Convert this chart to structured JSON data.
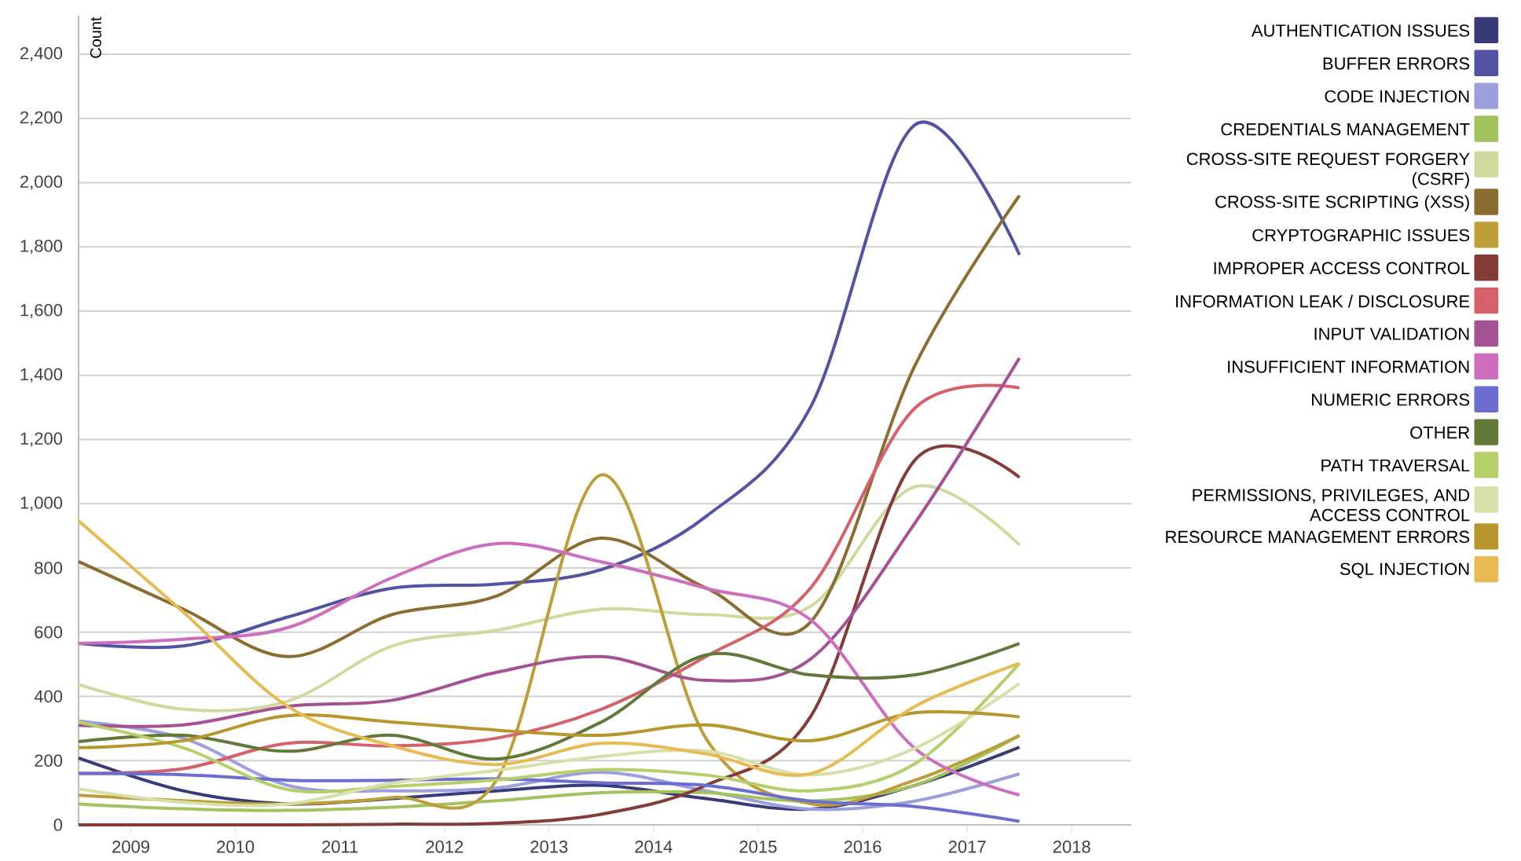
{
  "chart_data": {
    "type": "line",
    "ylabel": "Count",
    "x": [
      2008.5,
      2009.5,
      2010.5,
      2011.5,
      2012.5,
      2013.5,
      2014.5,
      2015.5,
      2016.5,
      2017.5
    ],
    "xlim": [
      2008.5,
      2018.57
    ],
    "xticks": [
      2009,
      2010,
      2011,
      2012,
      2013,
      2014,
      2015,
      2016,
      2017,
      2018
    ],
    "ylim": [
      0,
      2520
    ],
    "yticks": [
      0,
      200,
      400,
      600,
      800,
      {
        "value": 1000,
        "label": "1,000"
      },
      {
        "value": 1200,
        "label": "1,200"
      },
      {
        "value": 1400,
        "label": "1,400"
      },
      {
        "value": 1600,
        "label": "1,600"
      },
      {
        "value": 1800,
        "label": "1,800"
      },
      {
        "value": 2000,
        "label": "2,000"
      },
      {
        "value": 2200,
        "label": "2,200"
      },
      {
        "value": 2400,
        "label": "2,400"
      }
    ],
    "grid": "y",
    "legend": "right",
    "series": [
      {
        "name": "AUTHENTICATION ISSUES",
        "color": "#393b79",
        "values": [
          208,
          106,
          65,
          82,
          106,
          123,
          82,
          49,
          123,
          242
        ]
      },
      {
        "name": "BUFFER ERRORS",
        "color": "#5254a3",
        "values": [
          565,
          557,
          647,
          737,
          750,
          795,
          960,
          1300,
          2180,
          1775
        ]
      },
      {
        "name": "CODE INJECTION",
        "color": "#9c9ede",
        "values": [
          323,
          270,
          123,
          106,
          115,
          164,
          106,
          49,
          74,
          159
        ]
      },
      {
        "name": "CREDENTIALS MANAGEMENT",
        "color": "#a3c35e",
        "values": [
          65,
          50,
          45,
          55,
          75,
          100,
          100,
          74,
          123,
          278
        ]
      },
      {
        "name": "CROSS-SITE REQUEST FORGERY (CSRF)",
        "color": "#cedb9c",
        "values": [
          437,
          360,
          385,
          557,
          606,
          672,
          655,
          680,
          1053,
          872
        ]
      },
      {
        "name": "CROSS-SITE SCRIPTING (XSS)",
        "color": "#8c6d31",
        "values": [
          820,
          672,
          524,
          655,
          713,
          893,
          738,
          631,
          1430,
          1960
        ]
      },
      {
        "name": "CRYPTOGRAPHIC ISSUES",
        "color": "#bd9e39",
        "values": [
          92,
          75,
          65,
          85,
          140,
          1090,
          270,
          66,
          139,
          278
        ]
      },
      {
        "name": "IMPROPER ACCESS CONTROL",
        "color": "#843c39",
        "values": [
          0,
          0,
          0,
          2,
          5,
          33,
          123,
          336,
          1136,
          1082
        ]
      },
      {
        "name": "INFORMATION LEAK / DISCLOSURE",
        "color": "#d6616b",
        "values": [
          160,
          175,
          254,
          246,
          270,
          360,
          524,
          737,
          1298,
          1361
        ]
      },
      {
        "name": "INPUT VALIDATION",
        "color": "#a55194",
        "values": [
          310,
          311,
          369,
          388,
          475,
          524,
          450,
          516,
          940,
          1454
        ]
      },
      {
        "name": "INSUFFICIENT INFORMATION",
        "color": "#ce6dbd",
        "values": [
          565,
          578,
          614,
          770,
          876,
          819,
          737,
          639,
          238,
          93
        ]
      },
      {
        "name": "NUMERIC ERRORS",
        "color": "#6b6ecf",
        "values": [
          160,
          156,
          139,
          139,
          143,
          131,
          123,
          74,
          57,
          11
        ]
      },
      {
        "name": "OTHER",
        "color": "#637939",
        "values": [
          259,
          279,
          229,
          279,
          205,
          320,
          529,
          467,
          467,
          565
        ]
      },
      {
        "name": "PATH TRAVERSAL",
        "color": "#b5cf6b",
        "values": [
          320,
          240,
          110,
          120,
          140,
          172,
          155,
          106,
          190,
          503
        ]
      },
      {
        "name": "PERMISSIONS, PRIVILEGES, AND ACCESS CONTROL",
        "color": "#d6e0a8",
        "values": [
          112,
          70,
          65,
          130,
          170,
          213,
          230,
          156,
          238,
          440
        ]
      },
      {
        "name": "RESOURCE MANAGEMENT ERRORS",
        "color": "#b8962e",
        "values": [
          240,
          262,
          340,
          320,
          295,
          279,
          311,
          262,
          349,
          336
        ]
      },
      {
        "name": "SQL INJECTION",
        "color": "#e7ba52",
        "values": [
          947,
          663,
          369,
          246,
          188,
          254,
          221,
          159,
          369,
          503
        ]
      }
    ]
  }
}
